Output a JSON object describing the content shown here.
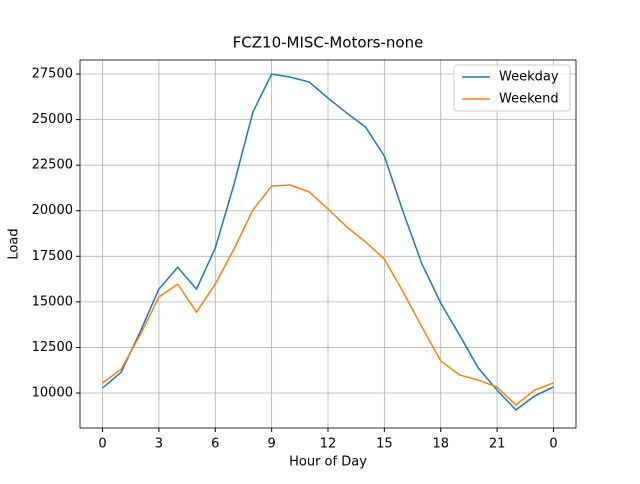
{
  "chart_data": {
    "type": "line",
    "title": "FCZ10-MISC-Motors-none",
    "x_label": "Hour of Day",
    "y_label": "Load",
    "x": [
      0,
      1,
      2,
      3,
      4,
      5,
      6,
      7,
      8,
      9,
      10,
      11,
      12,
      13,
      14,
      15,
      16,
      17,
      18,
      19,
      20,
      21,
      22,
      23,
      24
    ],
    "series": [
      {
        "name": "Weekday",
        "color": "#1f77b4",
        "values": [
          10270,
          11150,
          13350,
          15700,
          16900,
          15700,
          17950,
          21460,
          25400,
          27500,
          27330,
          27060,
          26180,
          25360,
          24590,
          23000,
          19930,
          17080,
          14940,
          13180,
          11370,
          10160,
          9070,
          9840,
          10330
        ]
      },
      {
        "name": "Weekend",
        "color": "#ff7f0e",
        "values": [
          10550,
          11320,
          13180,
          15270,
          15980,
          14440,
          15980,
          17900,
          20040,
          21360,
          21410,
          21030,
          20100,
          19110,
          18290,
          17350,
          15540,
          13620,
          11760,
          10990,
          10710,
          10330,
          9340,
          10160,
          10550
        ]
      }
    ],
    "xlim": [
      -1.2,
      25.2
    ],
    "xticks": [
      0,
      3,
      6,
      9,
      12,
      15,
      18,
      21,
      {
        "value": 24,
        "label": "0"
      }
    ],
    "ylim": [
      8080,
      28270
    ],
    "yticks": [
      10000,
      12500,
      15000,
      17500,
      20000,
      22500,
      25000,
      27500
    ],
    "grid": true,
    "legend": "upper right"
  }
}
